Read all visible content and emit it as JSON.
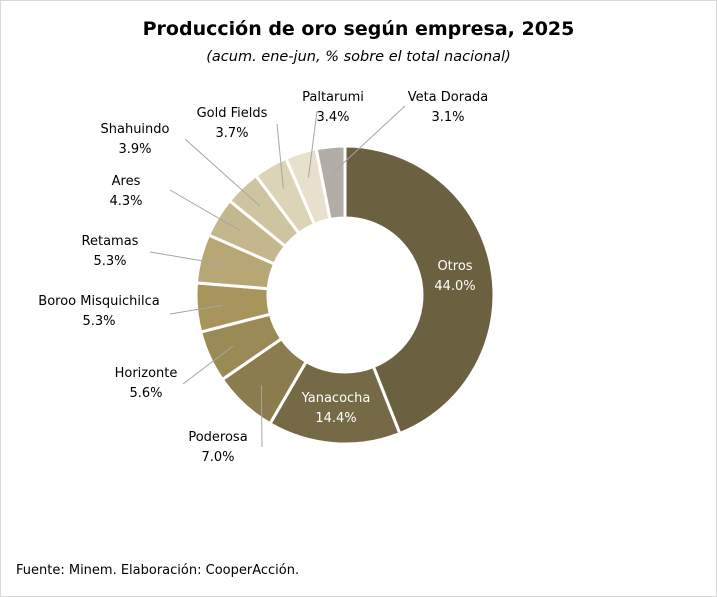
{
  "chart_data": {
    "type": "pie",
    "variant": "donut",
    "title": "Producción de oro según empresa, 2025",
    "subtitle": "(acum. ene-jun, % sobre el total nacional)",
    "source": "Fuente: Minem. Elaboración: CooperAcción.",
    "unit": "%",
    "slices": [
      {
        "name": "Otros",
        "value": 44.0,
        "value_label": "44.0%",
        "color": "#6b6040",
        "label_color": "#ffffff",
        "label_position": "inside"
      },
      {
        "name": "Yanacocha",
        "value": 14.4,
        "value_label": "14.4%",
        "color": "#756a45",
        "label_color": "#ffffff",
        "label_position": "inside"
      },
      {
        "name": "Poderosa",
        "value": 7.0,
        "value_label": "7.0%",
        "color": "#8a7c4e",
        "label_color": "#000000",
        "label_position": "outside"
      },
      {
        "name": "Horizonte",
        "value": 5.6,
        "value_label": "5.6%",
        "color": "#9a8a55",
        "label_color": "#000000",
        "label_position": "outside"
      },
      {
        "name": "Boroo Misquichilca",
        "value": 5.3,
        "value_label": "5.3%",
        "color": "#a8955c",
        "label_color": "#000000",
        "label_position": "outside"
      },
      {
        "name": "Retamas",
        "value": 5.3,
        "value_label": "5.3%",
        "color": "#b7a775",
        "label_color": "#000000",
        "label_position": "outside"
      },
      {
        "name": "Ares",
        "value": 4.3,
        "value_label": "4.3%",
        "color": "#c4b78d",
        "label_color": "#000000",
        "label_position": "outside"
      },
      {
        "name": "Shahuindo",
        "value": 3.9,
        "value_label": "3.9%",
        "color": "#cfc4a0",
        "label_color": "#000000",
        "label_position": "outside"
      },
      {
        "name": "Gold Fields",
        "value": 3.7,
        "value_label": "3.7%",
        "color": "#ddd3b6",
        "label_color": "#000000",
        "label_position": "outside"
      },
      {
        "name": "Paltarumi",
        "value": 3.4,
        "value_label": "3.4%",
        "color": "#e6e0cc",
        "label_color": "#000000",
        "label_position": "outside"
      },
      {
        "name": "Veta Dorada",
        "value": 3.1,
        "value_label": "3.1%",
        "color": "#b2ada6",
        "label_color": "#000000",
        "label_position": "outside"
      }
    ],
    "legend": "none"
  }
}
